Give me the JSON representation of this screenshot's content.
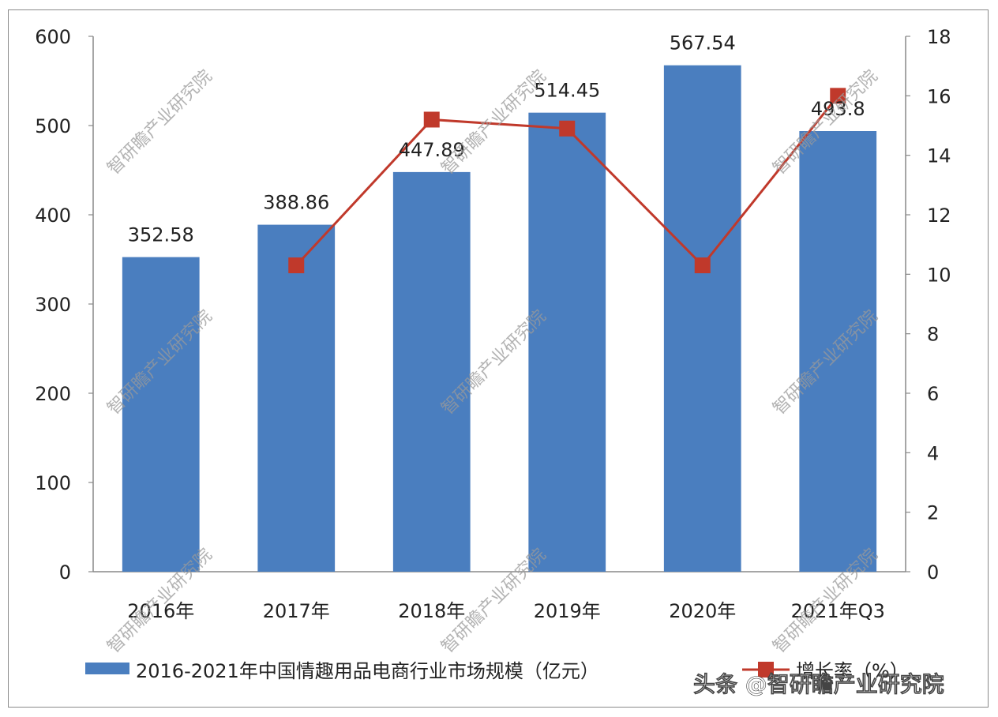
{
  "chart_data": {
    "type": "bar",
    "categories": [
      "2016年",
      "2017年",
      "2018年",
      "2019年",
      "2020年",
      "2021年Q3"
    ],
    "series": [
      {
        "name": "2016-2021年中国情趣用品电商行业市场规模（亿元）",
        "type": "bar",
        "axis": "left",
        "values": [
          352.58,
          388.86,
          447.89,
          514.45,
          567.54,
          493.8
        ],
        "labels": [
          "352.58",
          "388.86",
          "447.89",
          "514.45",
          "567.54",
          "493.8"
        ],
        "color": "#4a7ebf"
      },
      {
        "name": "增长率（%）",
        "type": "line",
        "axis": "right",
        "values": [
          null,
          10.3,
          15.2,
          14.9,
          10.3,
          16.0
        ],
        "color": "#c0392b"
      }
    ],
    "y_left": {
      "ylim": [
        0,
        600
      ],
      "ticks": [
        "0",
        "100",
        "200",
        "300",
        "400",
        "500",
        "600"
      ]
    },
    "y_right": {
      "ylim": [
        0,
        18
      ],
      "ticks": [
        "0",
        "2",
        "4",
        "6",
        "8",
        "10",
        "12",
        "14",
        "16",
        "18"
      ]
    },
    "grid": false,
    "legend": "bottom"
  },
  "watermark": "智研瞻产业研究院",
  "footer": "头条 @智研瞻产业研究院"
}
